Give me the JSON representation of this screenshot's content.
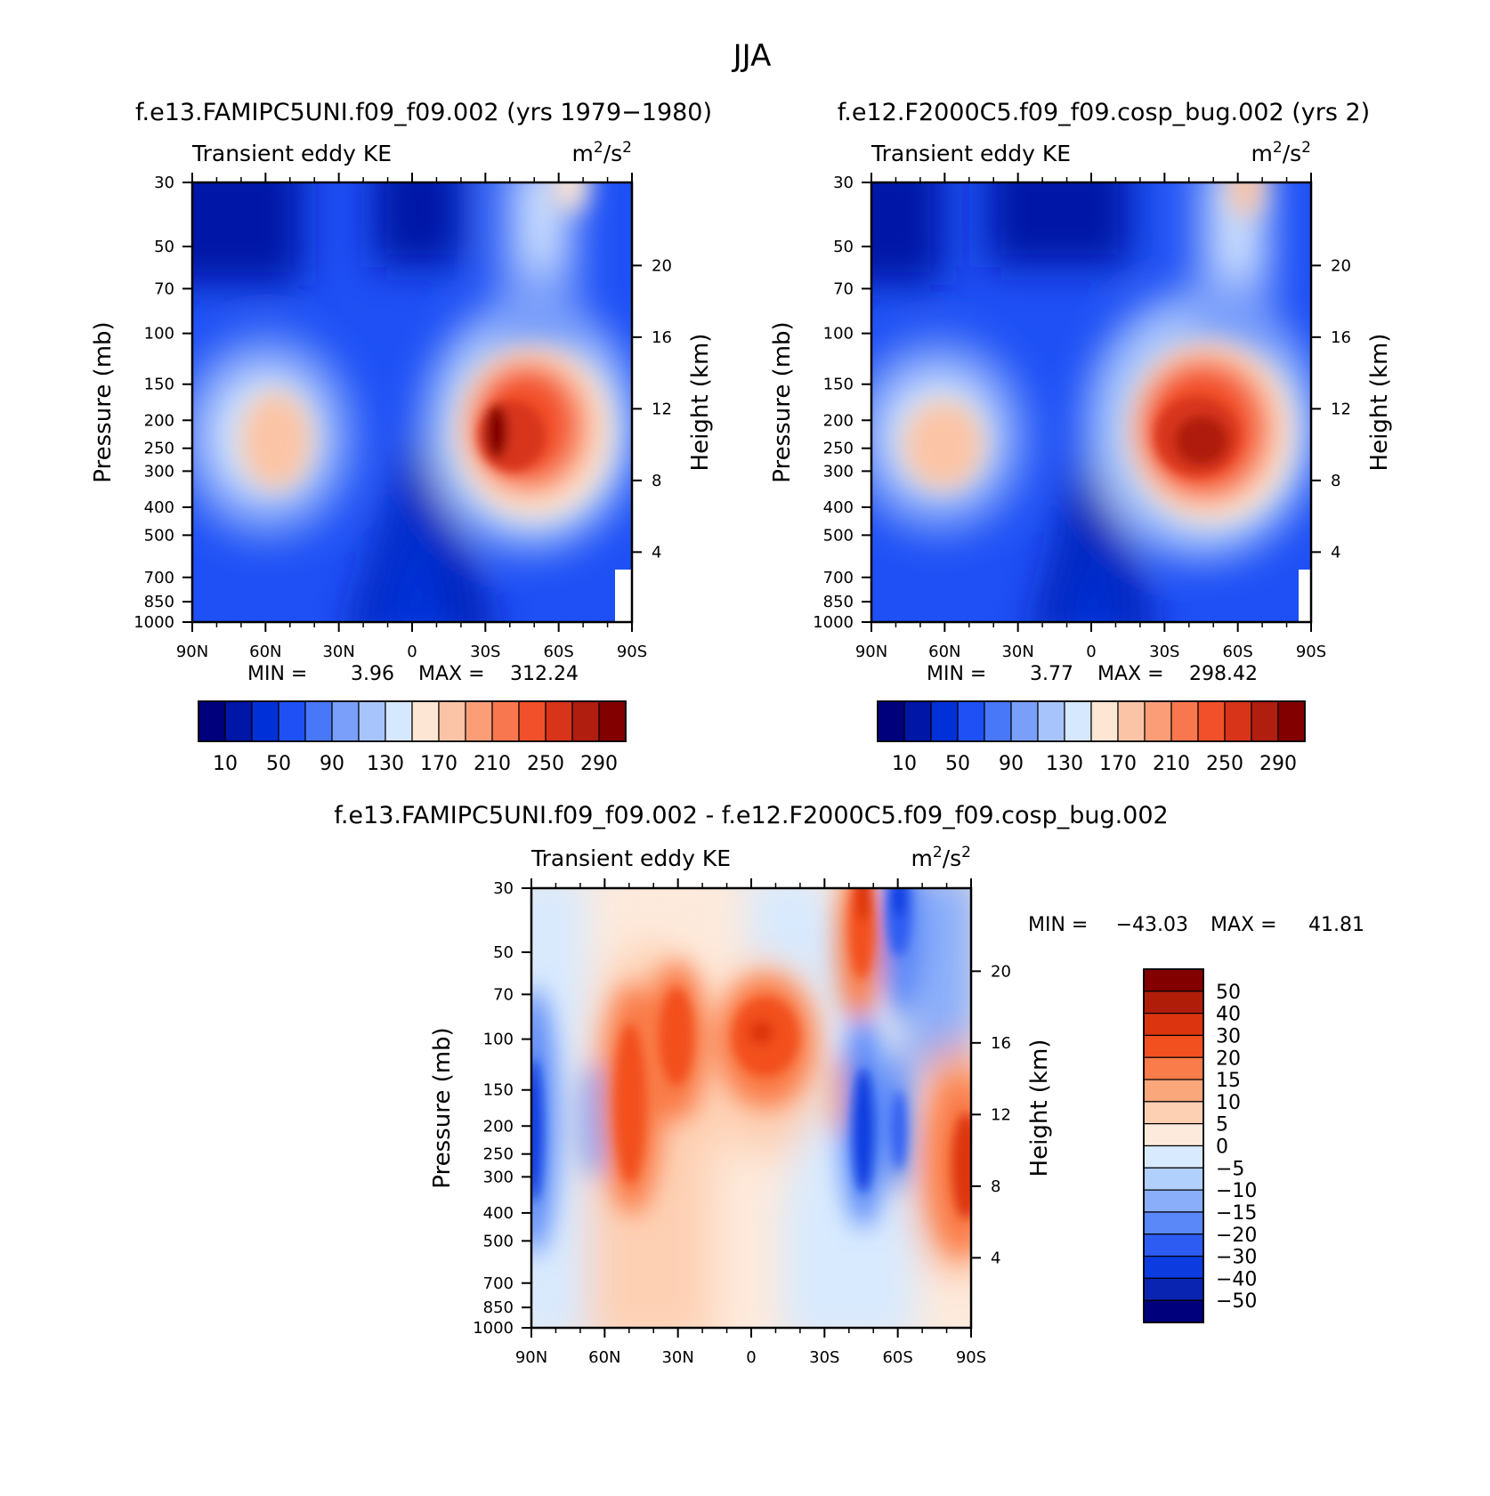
{
  "title": "JJA",
  "diff_title": "f.e13.FAMIPC5UNI.f09_f09.002 - f.e12.F2000C5.f09_f09.cosp_bug.002",
  "chart_data": [
    {
      "type": "heatmap",
      "title": "f.e13.FAMIPC5UNI.f09_f09.002 (yrs 1979−1980)",
      "variable": "Transient eddy KE",
      "units": "m²/s²",
      "ylabel": "Pressure (mb)",
      "y2label": "Height (km)",
      "y_scale": "log",
      "ylim": [
        1000,
        30
      ],
      "xlim": [
        90,
        -90
      ],
      "min_label": "MIN =",
      "max_label": "MAX =",
      "min": "3.96",
      "max": "312.24",
      "features": [
        {
          "lat": -35,
          "p": 230,
          "value": 300
        },
        {
          "lat": 50,
          "p": 260,
          "value": 185
        },
        {
          "lat": -55,
          "p": 30,
          "value": 175
        }
      ]
    },
    {
      "type": "heatmap",
      "title": "f.e12.F2000C5.f09_f09.cosp_bug.002 (yrs 2)",
      "variable": "Transient eddy KE",
      "units": "m²/s²",
      "ylabel": "Pressure (mb)",
      "y2label": "Height (km)",
      "y_scale": "log",
      "ylim": [
        1000,
        30
      ],
      "xlim": [
        90,
        -90
      ],
      "min_label": "MIN =",
      "max_label": "MAX =",
      "min": "3.77",
      "max": "298.42",
      "features": [
        {
          "lat": -42,
          "p": 250,
          "value": 290
        },
        {
          "lat": 55,
          "p": 260,
          "value": 175
        },
        {
          "lat": -65,
          "p": 32,
          "value": 175
        }
      ]
    },
    {
      "type": "heatmap",
      "title": "",
      "variable": "Transient eddy KE",
      "units": "m²/s²",
      "ylabel": "Pressure (mb)",
      "y2label": "Height (km)",
      "y_scale": "log",
      "ylim": [
        1000,
        30
      ],
      "xlim": [
        90,
        -90
      ],
      "min_label": "MIN =",
      "max_label": "MAX =",
      "min": "−43.03",
      "max": "41.81",
      "features": [
        {
          "lat": -48,
          "p": 35,
          "value": 40
        },
        {
          "lat": 50,
          "p": 230,
          "value": 30
        },
        {
          "lat": 32,
          "p": 140,
          "value": 20
        },
        {
          "lat": -3,
          "p": 140,
          "value": 30
        },
        {
          "lat": -48,
          "p": 280,
          "value": -40
        },
        {
          "lat": 88,
          "p": 300,
          "value": -30
        },
        {
          "lat": -60,
          "p": 50,
          "value": -35
        }
      ]
    }
  ],
  "pressure_ticks": [
    "30",
    "50",
    "70",
    "100",
    "150",
    "200",
    "250",
    "300",
    "400",
    "500",
    "700",
    "850",
    "1000"
  ],
  "height_ticks": [
    "20",
    "16",
    "12",
    "8",
    "4"
  ],
  "lat_ticks": [
    "90N",
    "60N",
    "30N",
    "0",
    "30S",
    "60S",
    "90S"
  ],
  "colorbar_main": {
    "colors": [
      "#00007c",
      "#0016a6",
      "#0030d8",
      "#1e50f5",
      "#4878f8",
      "#7a9ffa",
      "#a8c4fc",
      "#d6e8fe",
      "#fde6d4",
      "#fcc4a6",
      "#fb9e78",
      "#f9774e",
      "#f2502a",
      "#d7341a",
      "#af1e0e",
      "#820000"
    ],
    "labels": [
      "10",
      "50",
      "90",
      "130",
      "170",
      "210",
      "250",
      "290"
    ]
  },
  "colorbar_diff": {
    "colors": [
      "#820000",
      "#b01e0a",
      "#dd3410",
      "#f2501f",
      "#f97c4a",
      "#fba77c",
      "#fdd0b4",
      "#fdeadc",
      "#d8eafe",
      "#b2d0fc",
      "#8aaefa",
      "#5a88f8",
      "#2d5cf2",
      "#0c3ce0",
      "#0a24b2",
      "#00007c"
    ],
    "labels": [
      "50",
      "40",
      "30",
      "20",
      "15",
      "10",
      "5",
      "0",
      "−5",
      "−10",
      "−15",
      "−20",
      "−30",
      "−40",
      "−50"
    ]
  }
}
